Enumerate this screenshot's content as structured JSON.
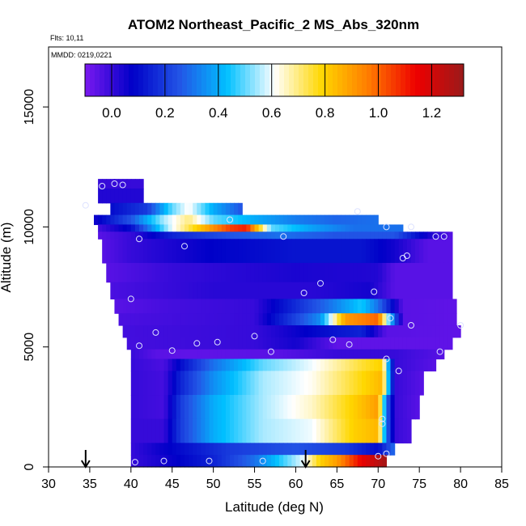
{
  "chart_data": {
    "type": "heatmap",
    "title": "ATOM2 Northeast_Pacific_2 MS_Abs_320nm",
    "flights_note": "Flts: 10,11",
    "dates_note": "MMDD: 0219,0221",
    "xlabel": "Latitude (deg N)",
    "ylabel": "Altitude (m)",
    "xlim": [
      30,
      85
    ],
    "ylim": [
      0,
      17500
    ],
    "xticks": [
      30,
      35,
      40,
      45,
      50,
      55,
      60,
      65,
      70,
      75,
      80,
      85
    ],
    "yticks": [
      0,
      5000,
      10000,
      15000
    ],
    "colorbar": {
      "min": -0.1,
      "max": 1.32,
      "ticks": [
        0.0,
        0.2,
        0.4,
        0.6,
        0.8,
        1.0,
        1.2
      ],
      "tick_labels": [
        "0.0",
        "0.2",
        "0.4",
        "0.6",
        "0.8",
        "1.0",
        "1.2"
      ],
      "colors": [
        "#7b19f0",
        "#0000c8",
        "#2255e6",
        "#00c0ff",
        "#ffffff",
        "#ffd700",
        "#ff7a00",
        "#ee0000",
        "#9a1a1a"
      ]
    },
    "bands": [
      {
        "alt": [
          11600,
          12000
        ],
        "lat": [
          36,
          41.5
        ],
        "value": 0.0
      },
      {
        "alt": [
          11000,
          11600
        ],
        "lat": [
          36,
          41.5
        ],
        "value": 0.03
      },
      {
        "alt": [
          10500,
          11000
        ],
        "lat": [
          37.5,
          53.5
        ],
        "value": 0.3,
        "profile": [
          [
            37.5,
            0.1
          ],
          [
            42,
            0.2
          ],
          [
            45,
            0.5
          ],
          [
            47,
            0.62
          ],
          [
            50,
            0.4
          ],
          [
            53.5,
            0.25
          ]
        ]
      },
      {
        "alt": [
          10100,
          10500
        ],
        "lat": [
          35.5,
          70
        ],
        "value": 0.3,
        "profile": [
          [
            35.5,
            0.05
          ],
          [
            40,
            0.25
          ],
          [
            44,
            0.55
          ],
          [
            47,
            0.7
          ],
          [
            50,
            0.5
          ],
          [
            55,
            0.4
          ],
          [
            60,
            0.32
          ],
          [
            65,
            0.28
          ],
          [
            70,
            0.3
          ]
        ]
      },
      {
        "alt": [
          9800,
          10100
        ],
        "lat": [
          36,
          73
        ],
        "value": 0.3,
        "profile": [
          [
            36,
            -0.02
          ],
          [
            40,
            0.1
          ],
          [
            45,
            0.6
          ],
          [
            48,
            0.8
          ],
          [
            52,
            1.05
          ],
          [
            54,
            1.1
          ],
          [
            57,
            0.5
          ],
          [
            62,
            0.38
          ],
          [
            67,
            0.3
          ],
          [
            73,
            0.3
          ]
        ]
      },
      {
        "alt": [
          9500,
          9800
        ],
        "lat": [
          36,
          79
        ],
        "value": 0.2,
        "profile": [
          [
            36,
            -0.05
          ],
          [
            40,
            0.0
          ],
          [
            45,
            0.15
          ],
          [
            52,
            0.25
          ],
          [
            58,
            0.3
          ],
          [
            65,
            0.25
          ],
          [
            72,
            0.25
          ],
          [
            76,
            0.05
          ],
          [
            79,
            -0.05
          ]
        ]
      },
      {
        "alt": [
          8500,
          9500
        ],
        "lat": [
          36.5,
          79
        ],
        "value": 0.08,
        "profile": [
          [
            36.5,
            -0.05
          ],
          [
            40,
            0.0
          ],
          [
            50,
            0.08
          ],
          [
            60,
            0.12
          ],
          [
            68,
            0.12
          ],
          [
            72,
            0.05
          ],
          [
            76,
            -0.05
          ],
          [
            79,
            -0.05
          ]
        ]
      },
      {
        "alt": [
          7700,
          8500
        ],
        "lat": [
          37,
          79
        ],
        "value": 0.02,
        "profile": [
          [
            37,
            -0.05
          ],
          [
            45,
            0.0
          ],
          [
            60,
            0.04
          ],
          [
            70,
            0.03
          ],
          [
            72,
            -0.05
          ],
          [
            79,
            -0.05
          ]
        ]
      },
      {
        "alt": [
          7000,
          7700
        ],
        "lat": [
          37.5,
          79
        ],
        "value": 0.0,
        "profile": [
          [
            37.5,
            -0.03
          ],
          [
            50,
            0.02
          ],
          [
            62,
            0.02
          ],
          [
            69,
            0.05
          ],
          [
            72,
            -0.05
          ],
          [
            79,
            -0.05
          ]
        ]
      },
      {
        "alt": [
          6400,
          7000
        ],
        "lat": [
          38,
          79.5
        ],
        "value": 0.0,
        "profile": [
          [
            38,
            -0.05
          ],
          [
            45,
            -0.02
          ],
          [
            55,
            0.0
          ],
          [
            64,
            0.3
          ],
          [
            68,
            0.45
          ],
          [
            70,
            0.3
          ],
          [
            73,
            -0.05
          ],
          [
            79.5,
            -0.06
          ]
        ]
      },
      {
        "alt": [
          5900,
          6400
        ],
        "lat": [
          38.5,
          79.5
        ],
        "value": 0.0,
        "profile": [
          [
            38.5,
            -0.03
          ],
          [
            55,
            0.0
          ],
          [
            63,
            0.35
          ],
          [
            66,
            0.9
          ],
          [
            70,
            1.0
          ],
          [
            71,
            0.6
          ],
          [
            73,
            -0.05
          ],
          [
            79.5,
            -0.06
          ]
        ]
      },
      {
        "alt": [
          5400,
          5900
        ],
        "lat": [
          39,
          80
        ],
        "value": 0.0,
        "profile": [
          [
            39,
            -0.02
          ],
          [
            55,
            0.0
          ],
          [
            63,
            0.1
          ],
          [
            68,
            0.15
          ],
          [
            71,
            -0.05
          ],
          [
            80,
            -0.06
          ]
        ]
      },
      {
        "alt": [
          4900,
          5400
        ],
        "lat": [
          39.5,
          79
        ],
        "value": 0.0,
        "profile": [
          [
            39.5,
            -0.02
          ],
          [
            55,
            0.0
          ],
          [
            60,
            0.05
          ],
          [
            65,
            -0.06
          ],
          [
            79,
            -0.06
          ]
        ]
      },
      {
        "alt": [
          4500,
          4900
        ],
        "lat": [
          40,
          78
        ],
        "value": 0.0,
        "profile": [
          [
            40,
            0.0
          ],
          [
            43,
            -0.05
          ],
          [
            47,
            -0.06
          ],
          [
            58,
            -0.05
          ],
          [
            65,
            0.0
          ],
          [
            72,
            0.0
          ],
          [
            78,
            -0.05
          ]
        ]
      },
      {
        "alt": [
          4000,
          4500
        ],
        "lat": [
          40,
          77
        ],
        "value": 0.3,
        "profile": [
          [
            40,
            0.0
          ],
          [
            44,
            -0.03
          ],
          [
            46,
            0.1
          ],
          [
            50,
            0.3
          ],
          [
            56,
            0.5
          ],
          [
            62,
            0.6
          ],
          [
            68,
            0.75
          ],
          [
            70.5,
            0.8
          ],
          [
            72,
            0.0
          ],
          [
            77,
            -0.05
          ]
        ]
      },
      {
        "alt": [
          3000,
          4000
        ],
        "lat": [
          40,
          75.5
        ],
        "value": 0.3,
        "profile": [
          [
            40,
            0.0
          ],
          [
            44,
            -0.02
          ],
          [
            46,
            0.15
          ],
          [
            50,
            0.35
          ],
          [
            56,
            0.55
          ],
          [
            62,
            0.62
          ],
          [
            68,
            0.78
          ],
          [
            70.5,
            0.85
          ],
          [
            72,
            0.0
          ],
          [
            75.5,
            -0.05
          ]
        ]
      },
      {
        "alt": [
          2000,
          3000
        ],
        "lat": [
          40,
          75
        ],
        "value": 0.3,
        "profile": [
          [
            40,
            0.0
          ],
          [
            44,
            -0.02
          ],
          [
            46,
            0.2
          ],
          [
            50,
            0.4
          ],
          [
            56,
            0.55
          ],
          [
            62,
            0.65
          ],
          [
            67,
            0.8
          ],
          [
            70,
            0.9
          ],
          [
            71,
            0.3
          ],
          [
            72,
            0.0
          ],
          [
            75,
            -0.05
          ]
        ]
      },
      {
        "alt": [
          1000,
          2000
        ],
        "lat": [
          40,
          74
        ],
        "value": 0.3,
        "profile": [
          [
            40,
            0.0
          ],
          [
            44,
            0.0
          ],
          [
            46,
            0.2
          ],
          [
            50,
            0.4
          ],
          [
            56,
            0.55
          ],
          [
            62,
            0.6
          ],
          [
            67,
            0.8
          ],
          [
            70,
            0.85
          ],
          [
            71,
            0.3
          ],
          [
            72,
            0.0
          ],
          [
            74,
            -0.03
          ]
        ]
      },
      {
        "alt": [
          500,
          1000
        ],
        "lat": [
          40,
          72
        ],
        "value": 0.15,
        "profile": [
          [
            40,
            0.0
          ],
          [
            46,
            0.1
          ],
          [
            52,
            0.2
          ],
          [
            60,
            0.25
          ],
          [
            66,
            0.2
          ],
          [
            70,
            0.1
          ],
          [
            72,
            0.3
          ]
        ]
      },
      {
        "alt": [
          0,
          500
        ],
        "lat": [
          40,
          71
        ],
        "value": 0.4,
        "profile": [
          [
            40,
            0.0
          ],
          [
            44,
            0.05
          ],
          [
            50,
            0.15
          ],
          [
            55,
            0.3
          ],
          [
            58,
            0.45
          ],
          [
            61,
            0.6
          ],
          [
            63,
            0.8
          ],
          [
            65,
            0.9
          ],
          [
            68,
            1.15
          ],
          [
            70,
            1.25
          ],
          [
            71,
            1.3
          ]
        ]
      }
    ],
    "points": [
      [
        36.5,
        11700
      ],
      [
        38,
        11800
      ],
      [
        39,
        11750
      ],
      [
        34.5,
        10900
      ],
      [
        52,
        10300
      ],
      [
        67.5,
        10650
      ],
      [
        71,
        10000
      ],
      [
        74,
        10000
      ],
      [
        77,
        9600
      ],
      [
        78,
        9600
      ],
      [
        41,
        9500
      ],
      [
        46.5,
        9200
      ],
      [
        58.5,
        9600
      ],
      [
        73.5,
        8800
      ],
      [
        73,
        8700
      ],
      [
        63,
        7650
      ],
      [
        61,
        7250
      ],
      [
        69.5,
        7300
      ],
      [
        40,
        7000
      ],
      [
        71.5,
        6200
      ],
      [
        74,
        5900
      ],
      [
        80,
        5900
      ],
      [
        43,
        5600
      ],
      [
        55,
        5450
      ],
      [
        64.5,
        5300
      ],
      [
        66.5,
        5100
      ],
      [
        41,
        5050
      ],
      [
        48,
        5150
      ],
      [
        50.5,
        5200
      ],
      [
        57,
        4800
      ],
      [
        45,
        4850
      ],
      [
        77.5,
        4800
      ],
      [
        71,
        4500
      ],
      [
        72.5,
        4000
      ],
      [
        70.5,
        2000
      ],
      [
        70.5,
        1800
      ],
      [
        40.5,
        200
      ],
      [
        44,
        250
      ],
      [
        49.5,
        250
      ],
      [
        56,
        250
      ],
      [
        70,
        450
      ],
      [
        71,
        550
      ]
    ],
    "arrows": [
      34.5,
      61.2
    ]
  }
}
